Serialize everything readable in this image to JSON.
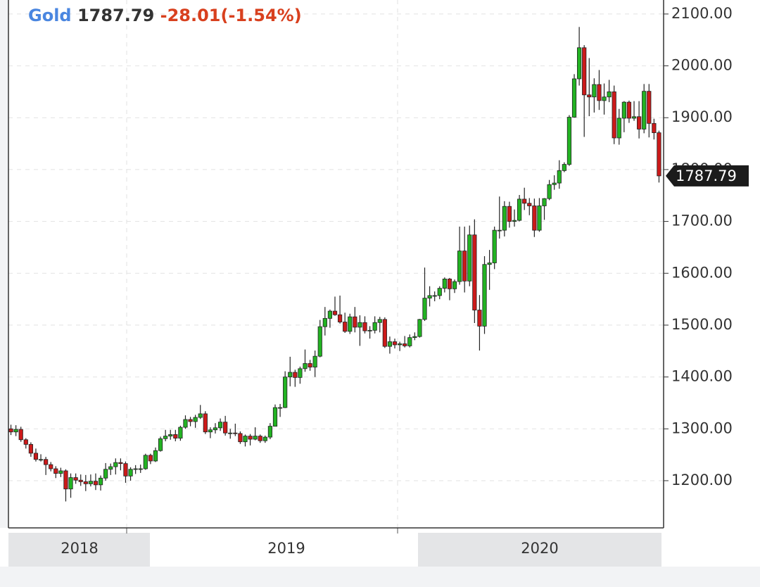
{
  "chart_data": {
    "type": "candlestick",
    "title": "Gold",
    "change": "-28.01(-1.54%)",
    "x_labels": [
      "2018",
      "2019",
      "2020"
    ],
    "up_color": "#22b322",
    "down_color": "#cc1a1a",
    "ylim": [
      1109,
      2127
    ],
    "yticks": [
      {
        "value": 1200,
        "label": "1200.00"
      },
      {
        "value": 1300,
        "label": "1300.00"
      },
      {
        "value": 1400,
        "label": "1400.00"
      },
      {
        "value": 1500,
        "label": "1500.00"
      },
      {
        "value": 1600,
        "label": "1600.00"
      },
      {
        "value": 1700,
        "label": "1700.00"
      },
      {
        "value": 1800,
        "label": "1800.00"
      },
      {
        "value": 1900,
        "label": "1900.00"
      },
      {
        "value": 2000,
        "label": "2000.00"
      },
      {
        "value": 2100,
        "label": "2100.00"
      }
    ],
    "grid": true,
    "open": [
      1300,
      1294,
      1299,
      1279,
      1270,
      1253,
      1241,
      1241,
      1231,
      1223,
      1214,
      1219,
      1184,
      1206,
      1201,
      1198,
      1194,
      1199,
      1192,
      1205,
      1222,
      1227,
      1235,
      1233,
      1209,
      1222,
      1223,
      1223,
      1249,
      1238,
      1258,
      1281,
      1286,
      1289,
      1282,
      1303,
      1318,
      1314,
      1322,
      1329,
      1294,
      1298,
      1302,
      1313,
      1292,
      1292,
      1291,
      1275,
      1286,
      1280,
      1286,
      1277,
      1284,
      1305,
      1341,
      1341,
      1400,
      1409,
      1399,
      1416,
      1426,
      1419,
      1440,
      1497,
      1513,
      1527,
      1520,
      1506,
      1488,
      1516,
      1496,
      1505,
      1489,
      1490,
      1505,
      1511,
      1459,
      1468,
      1462,
      1464,
      1460,
      1476,
      1478,
      1511,
      1552,
      1557,
      1557,
      1571,
      1589,
      1570,
      1584,
      1643,
      1585,
      1674,
      1529,
      1498,
      1617,
      1620,
      1683,
      1683,
      1729,
      1700,
      1702,
      1743,
      1735,
      1730,
      1683,
      1730,
      1744,
      1771,
      1774,
      1798,
      1810,
      1901,
      1975,
      2035,
      1944,
      1940,
      1964,
      1933,
      1940,
      1950,
      1861,
      1899,
      1930,
      1899,
      1902,
      1878,
      1951,
      1889,
      1871
    ],
    "high": [
      1308,
      1307,
      1304,
      1282,
      1274,
      1262,
      1251,
      1246,
      1236,
      1228,
      1225,
      1222,
      1214,
      1214,
      1212,
      1211,
      1212,
      1214,
      1210,
      1234,
      1233,
      1243,
      1243,
      1237,
      1226,
      1230,
      1231,
      1252,
      1252,
      1264,
      1285,
      1298,
      1298,
      1298,
      1306,
      1326,
      1323,
      1327,
      1346,
      1334,
      1303,
      1311,
      1320,
      1325,
      1300,
      1310,
      1295,
      1289,
      1290,
      1303,
      1289,
      1287,
      1311,
      1347,
      1348,
      1411,
      1439,
      1414,
      1420,
      1453,
      1433,
      1451,
      1510,
      1535,
      1530,
      1555,
      1557,
      1524,
      1522,
      1535,
      1519,
      1517,
      1498,
      1517,
      1516,
      1515,
      1478,
      1474,
      1468,
      1479,
      1482,
      1486,
      1512,
      1611,
      1575,
      1565,
      1575,
      1592,
      1591,
      1588,
      1690,
      1690,
      1692,
      1704,
      1558,
      1633,
      1645,
      1690,
      1748,
      1739,
      1738,
      1723,
      1751,
      1765,
      1745,
      1744,
      1745,
      1745,
      1780,
      1789,
      1818,
      1814,
      1905,
      1984,
      2075,
      2040,
      2015,
      1976,
      1992,
      1966,
      1973,
      1962,
      1917,
      1932,
      1933,
      1932,
      1932,
      1965,
      1965,
      1898,
      1875
    ],
    "low": [
      1288,
      1286,
      1275,
      1262,
      1246,
      1237,
      1237,
      1211,
      1218,
      1205,
      1207,
      1160,
      1167,
      1194,
      1190,
      1180,
      1189,
      1182,
      1181,
      1200,
      1211,
      1212,
      1220,
      1196,
      1200,
      1213,
      1215,
      1221,
      1232,
      1236,
      1256,
      1276,
      1279,
      1276,
      1277,
      1300,
      1305,
      1302,
      1319,
      1290,
      1282,
      1291,
      1296,
      1287,
      1281,
      1286,
      1271,
      1266,
      1268,
      1278,
      1273,
      1273,
      1280,
      1305,
      1323,
      1340,
      1382,
      1381,
      1387,
      1410,
      1412,
      1400,
      1438,
      1480,
      1495,
      1518,
      1503,
      1485,
      1483,
      1486,
      1460,
      1484,
      1474,
      1484,
      1486,
      1456,
      1445,
      1455,
      1450,
      1457,
      1457,
      1471,
      1476,
      1508,
      1536,
      1546,
      1550,
      1563,
      1548,
      1562,
      1578,
      1563,
      1575,
      1504,
      1451,
      1483,
      1568,
      1608,
      1667,
      1671,
      1688,
      1690,
      1700,
      1722,
      1712,
      1670,
      1680,
      1703,
      1741,
      1761,
      1763,
      1795,
      1807,
      1900,
      1962,
      1863,
      1903,
      1910,
      1915,
      1906,
      1930,
      1849,
      1848,
      1872,
      1890,
      1894,
      1860,
      1870,
      1862,
      1858,
      1775
    ],
    "close": [
      1294,
      1299,
      1279,
      1270,
      1253,
      1241,
      1241,
      1231,
      1223,
      1214,
      1219,
      1184,
      1206,
      1201,
      1198,
      1194,
      1199,
      1192,
      1205,
      1222,
      1227,
      1235,
      1233,
      1209,
      1222,
      1223,
      1223,
      1249,
      1238,
      1258,
      1281,
      1286,
      1289,
      1282,
      1303,
      1318,
      1314,
      1322,
      1329,
      1294,
      1298,
      1302,
      1313,
      1292,
      1292,
      1291,
      1275,
      1286,
      1280,
      1286,
      1277,
      1284,
      1305,
      1341,
      1341,
      1400,
      1409,
      1399,
      1416,
      1426,
      1419,
      1440,
      1497,
      1513,
      1527,
      1520,
      1506,
      1488,
      1516,
      1496,
      1505,
      1489,
      1490,
      1505,
      1511,
      1459,
      1468,
      1462,
      1464,
      1460,
      1476,
      1478,
      1511,
      1552,
      1557,
      1557,
      1571,
      1589,
      1570,
      1584,
      1643,
      1585,
      1674,
      1529,
      1498,
      1617,
      1620,
      1683,
      1683,
      1729,
      1700,
      1702,
      1743,
      1735,
      1730,
      1683,
      1730,
      1744,
      1771,
      1774,
      1798,
      1810,
      1901,
      1975,
      2035,
      1944,
      1940,
      1964,
      1933,
      1940,
      1950,
      1861,
      1899,
      1930,
      1899,
      1902,
      1878,
      1951,
      1889,
      1871,
      1787.79
    ]
  }
}
